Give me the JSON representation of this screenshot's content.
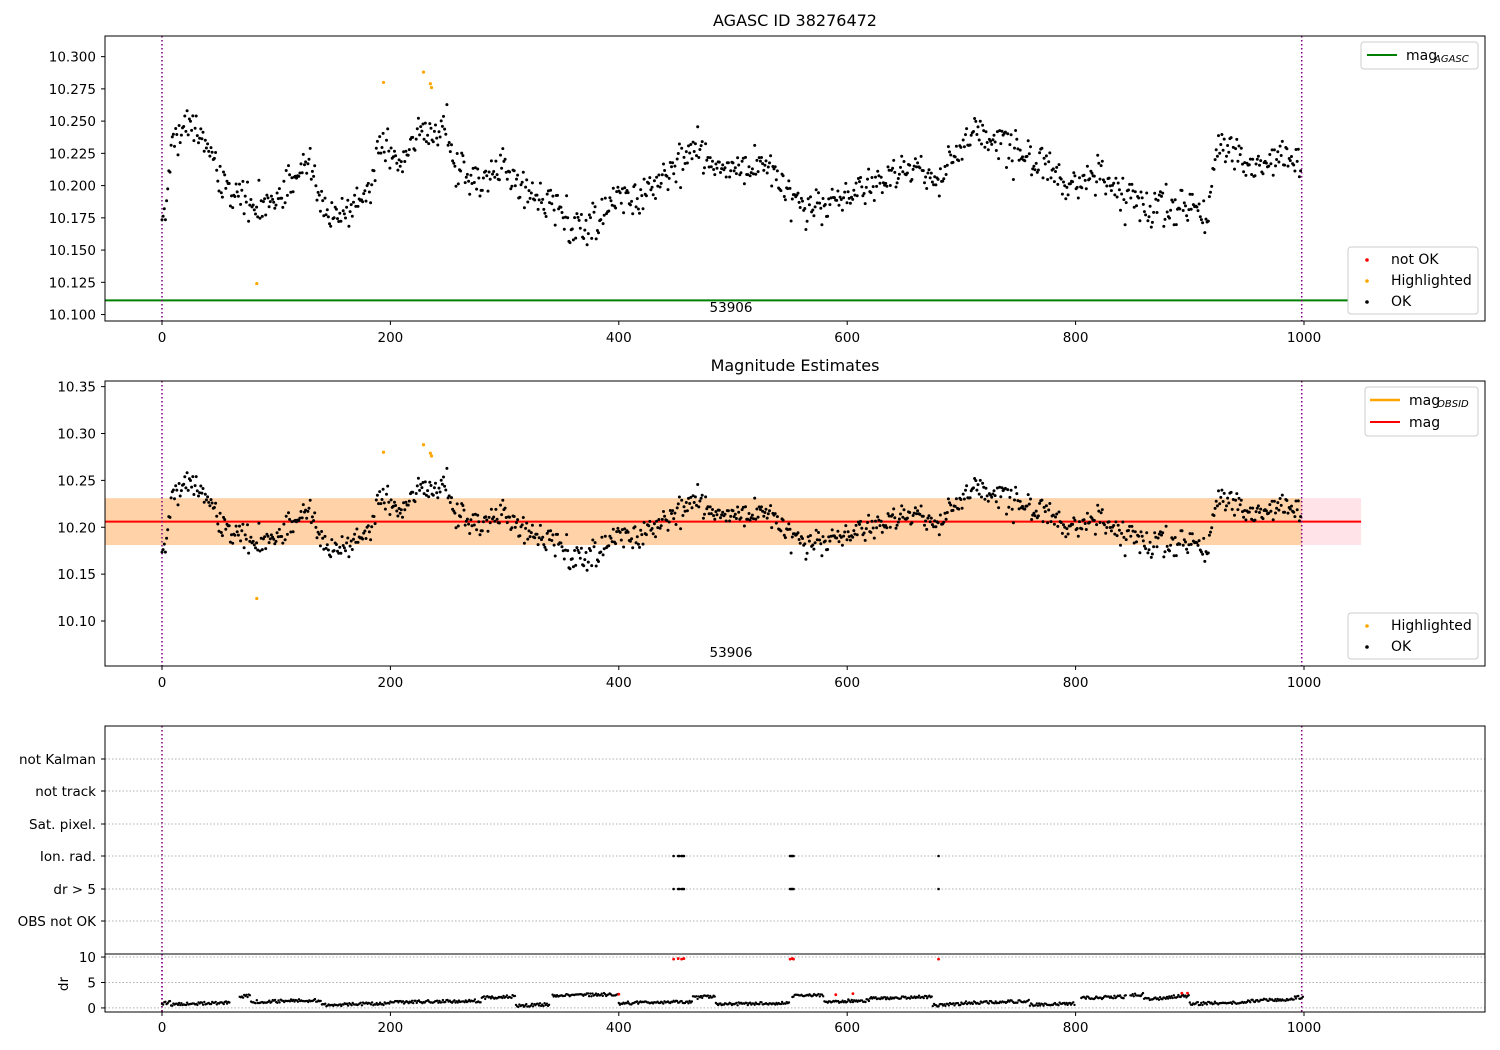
{
  "chart_data": [
    {
      "type": "scatter",
      "title": "AGASC ID 38276472",
      "annotation": "53906",
      "xlim": [
        -50,
        1160
      ],
      "ylim": [
        10.095,
        10.316
      ],
      "xticks": [
        "0",
        "200",
        "400",
        "600",
        "800",
        "1000"
      ],
      "yticks": [
        "10.100",
        "10.125",
        "10.150",
        "10.175",
        "10.200",
        "10.225",
        "10.250",
        "10.275",
        "10.300"
      ],
      "reference_line": {
        "name": "mag_AGASC",
        "value": 10.111,
        "xrange": [
          -50,
          1050
        ],
        "color": "#008000"
      },
      "vertical_lines": [
        0,
        998
      ],
      "legend_top": {
        "position": "top-right",
        "entries": [
          {
            "label": "mag",
            "sub": "AGASC",
            "color": "#008000"
          }
        ]
      },
      "legend_bottom": {
        "position": "bottom-right",
        "entries": [
          {
            "label": "not OK",
            "color": "#ff0000"
          },
          {
            "label": "Highlighted",
            "color": "#ffa500"
          },
          {
            "label": "OK",
            "color": "#000000"
          }
        ]
      },
      "series": [
        {
          "name": "OK",
          "color": "#000000",
          "values": "mag_points"
        },
        {
          "name": "Highlighted",
          "color": "#ffa500",
          "points": [
            [
              83,
              10.124
            ],
            [
              194,
              10.28
            ],
            [
              229,
              10.288
            ],
            [
              235,
              10.279
            ],
            [
              236,
              10.276
            ]
          ]
        }
      ]
    },
    {
      "type": "scatter",
      "title": "Magnitude Estimates",
      "annotation": "53906",
      "xlim": [
        -50,
        1160
      ],
      "ylim": [
        10.052,
        10.356
      ],
      "xticks": [
        "0",
        "200",
        "400",
        "600",
        "800",
        "1000"
      ],
      "yticks": [
        "10.10",
        "10.15",
        "10.20",
        "10.25",
        "10.30",
        "10.35"
      ],
      "mag": {
        "value": 10.206,
        "band": [
          10.181,
          10.231
        ],
        "xrange": [
          -50,
          1050
        ],
        "color": "#ff0000"
      },
      "mag_obsid": {
        "value": 10.206,
        "band": [
          10.181,
          10.231
        ],
        "color": "#ffa500"
      },
      "vertical_lines": [
        0,
        998
      ],
      "legend_top": {
        "position": "top-right",
        "entries": [
          {
            "label": "mag",
            "sub": "OBSID",
            "color": "#ffa500"
          },
          {
            "label": "mag",
            "sub": "",
            "color": "#ff0000"
          }
        ]
      },
      "legend_bottom": {
        "position": "bottom-right",
        "entries": [
          {
            "label": "Highlighted",
            "color": "#ffa500"
          },
          {
            "label": "OK",
            "color": "#000000"
          }
        ]
      },
      "series": [
        {
          "name": "OK",
          "color": "#000000",
          "values": "mag_points"
        },
        {
          "name": "Highlighted",
          "color": "#ffa500",
          "points": [
            [
              83,
              10.124
            ],
            [
              194,
              10.28
            ],
            [
              229,
              10.288
            ],
            [
              235,
              10.279
            ],
            [
              236,
              10.276
            ]
          ]
        }
      ]
    },
    {
      "type": "scatter",
      "title": "",
      "xlim": [
        -50,
        1160
      ],
      "xticks": [
        "0",
        "200",
        "400",
        "600",
        "800",
        "1000"
      ],
      "flag_rows": [
        "not Kalman",
        "not track",
        "Sat. pixel.",
        "Ion. rad.",
        "dr > 5",
        "OBS not OK"
      ],
      "flag_points": {
        "Ion. rad.": [
          448,
          452,
          453,
          455,
          456,
          457,
          550,
          551,
          552,
          553,
          680
        ],
        "dr > 5": [
          448,
          452,
          453,
          455,
          456,
          457,
          550,
          551,
          552,
          553,
          680
        ]
      },
      "vertical_lines": [
        0,
        998
      ]
    },
    {
      "type": "scatter",
      "title": "",
      "ylabel": "dr",
      "xlim": [
        -50,
        1160
      ],
      "ylim": [
        -0.8,
        10.6
      ],
      "yticks": [
        "0",
        "5",
        "10"
      ],
      "xticks": [
        "0",
        "200",
        "400",
        "600",
        "800",
        "1000"
      ],
      "red_points": [
        [
          448,
          9.6
        ],
        [
          452,
          9.7
        ],
        [
          455,
          9.6
        ],
        [
          457,
          9.7
        ],
        [
          550,
          9.6
        ],
        [
          552,
          9.7
        ],
        [
          553,
          9.6
        ],
        [
          680,
          9.6
        ],
        [
          590,
          2.6
        ],
        [
          605,
          2.8
        ],
        [
          893,
          2.9
        ],
        [
          898,
          2.9
        ],
        [
          400,
          2.7
        ]
      ],
      "baseline_segments": [
        [
          0,
          8,
          0.9
        ],
        [
          8,
          60,
          0.7
        ],
        [
          68,
          78,
          2.2
        ],
        [
          78,
          140,
          1.2
        ],
        [
          140,
          200,
          0.6
        ],
        [
          200,
          280,
          1.1
        ],
        [
          280,
          310,
          2.0
        ],
        [
          310,
          340,
          0.4
        ],
        [
          342,
          400,
          2.4
        ],
        [
          400,
          465,
          0.9
        ],
        [
          465,
          485,
          2.0
        ],
        [
          485,
          550,
          0.7
        ],
        [
          552,
          580,
          2.3
        ],
        [
          580,
          620,
          1.2
        ],
        [
          620,
          675,
          1.9
        ],
        [
          675,
          700,
          0.5
        ],
        [
          700,
          760,
          1.0
        ],
        [
          760,
          800,
          0.6
        ],
        [
          805,
          845,
          1.9
        ],
        [
          848,
          860,
          2.4
        ],
        [
          860,
          880,
          1.7
        ],
        [
          880,
          900,
          2.1
        ],
        [
          900,
          950,
          0.8
        ],
        [
          950,
          990,
          1.4
        ],
        [
          990,
          1000,
          1.9
        ]
      ],
      "vertical_lines": [
        0,
        998
      ]
    }
  ],
  "mag_points_model": {
    "n": 1000,
    "knots_x": [
      0,
      3,
      10,
      20,
      30,
      40,
      50,
      60,
      70,
      80,
      90,
      100,
      115,
      130,
      140,
      150,
      160,
      170,
      183,
      190,
      200,
      210,
      225,
      235,
      250,
      258,
      270,
      290,
      300,
      320,
      340,
      360,
      380,
      400,
      420,
      440,
      455,
      470,
      490,
      510,
      530,
      545,
      560,
      580,
      600,
      620,
      640,
      660,
      680,
      700,
      710,
      720,
      740,
      760,
      775,
      790,
      800,
      820,
      840,
      860,
      880,
      900,
      915,
      925,
      940,
      960,
      980,
      998
    ],
    "knots_y": [
      10.17,
      10.178,
      10.235,
      10.258,
      10.248,
      10.235,
      10.205,
      10.2,
      10.19,
      10.185,
      10.18,
      10.19,
      10.205,
      10.215,
      10.185,
      10.175,
      10.18,
      10.19,
      10.2,
      10.228,
      10.225,
      10.218,
      10.245,
      10.24,
      10.25,
      10.21,
      10.205,
      10.21,
      10.218,
      10.19,
      10.19,
      10.165,
      10.175,
      10.19,
      10.195,
      10.205,
      10.222,
      10.225,
      10.215,
      10.21,
      10.215,
      10.2,
      10.18,
      10.185,
      10.195,
      10.2,
      10.21,
      10.215,
      10.205,
      10.23,
      10.245,
      10.24,
      10.23,
      10.22,
      10.215,
      10.195,
      10.2,
      10.21,
      10.19,
      10.185,
      10.185,
      10.185,
      10.18,
      10.235,
      10.225,
      10.21,
      10.225,
      10.215
    ],
    "noise": 0.014
  }
}
